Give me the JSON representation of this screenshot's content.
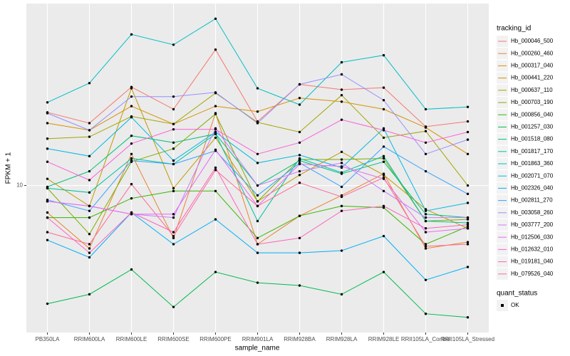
{
  "chart_data": {
    "type": "line",
    "x_label": "sample_name",
    "y_label": "FPKM + 1",
    "y_scale": "log",
    "ylim": [
      3.4,
      38
    ],
    "yticks": [
      10
    ],
    "grid": true,
    "legend_title": "tracking_id",
    "point_legend": {
      "title": "quant_status",
      "labels": [
        "OK"
      ]
    },
    "categories": [
      "PB350LA",
      "RRIM600LA",
      "RRIM600LE",
      "RRIM600SE",
      "RRIM600PE",
      "RRIM901LA",
      "RRIM928BA",
      "RRIM928LA",
      "RRIM928LE",
      "RRII105LA_Control",
      "RRII105LA_Stressed"
    ],
    "series": [
      {
        "name": "Hb_000046_500",
        "color": "#F8766D",
        "values": [
          17.1,
          15.8,
          20.6,
          17.5,
          27.1,
          16.0,
          21.0,
          20.2,
          20.5,
          15.4,
          16.0
        ]
      },
      {
        "name": "Hb_000260_460",
        "color": "#EA8331",
        "values": [
          8.2,
          6.3,
          12.6,
          6.8,
          17.0,
          6.5,
          8.0,
          9.3,
          10.9,
          6.3,
          6.6
        ]
      },
      {
        "name": "Hb_000317_040",
        "color": "#D89000",
        "values": [
          15.8,
          15.0,
          17.9,
          15.7,
          17.9,
          17.2,
          19.0,
          18.5,
          17.5,
          15.3,
          12.6
        ]
      },
      {
        "name": "Hb_000441_220",
        "color": "#C09B00",
        "values": [
          10.5,
          8.6,
          20.4,
          9.8,
          14.2,
          8.9,
          10.8,
          12.8,
          10.8,
          8.4,
          7.3
        ]
      },
      {
        "name": "Hb_000637_110",
        "color": "#A3A500",
        "values": [
          14.1,
          14.3,
          16.6,
          15.7,
          19.7,
          15.9,
          14.8,
          19.4,
          14.2,
          14.9,
          10.0
        ]
      },
      {
        "name": "Hb_000703_190",
        "color": "#7CAE00",
        "values": [
          9.8,
          7.0,
          11.9,
          13.1,
          16.9,
          8.9,
          12.1,
          12.1,
          12.2,
          7.7,
          7.8
        ]
      },
      {
        "name": "Hb_000856_040",
        "color": "#39B600",
        "values": [
          7.9,
          7.9,
          9.1,
          9.6,
          9.6,
          6.8,
          8.0,
          8.6,
          8.5,
          6.5,
          7.4
        ]
      },
      {
        "name": "Hb_001257_030",
        "color": "#00BB4E",
        "values": [
          4.2,
          4.5,
          5.4,
          4.1,
          5.3,
          4.9,
          4.8,
          4.5,
          5.3,
          3.9,
          3.8
        ]
      },
      {
        "name": "Hb_001518_080",
        "color": "#00BF7D",
        "values": [
          9.9,
          11.1,
          14.4,
          13.7,
          14.6,
          10.0,
          12.0,
          10.9,
          11.9,
          8.1,
          7.9
        ]
      },
      {
        "name": "Hb_001817_170",
        "color": "#00C1A3",
        "values": [
          9.8,
          9.5,
          12.2,
          11.7,
          14.6,
          7.7,
          12.2,
          11.0,
          12.4,
          7.7,
          7.6
        ]
      },
      {
        "name": "Hb_001863_360",
        "color": "#00BFC4",
        "values": [
          18.4,
          21.2,
          30.3,
          28.1,
          34.0,
          20.4,
          18.1,
          24.7,
          26.0,
          17.5,
          17.8
        ]
      },
      {
        "name": "Hb_002071_070",
        "color": "#00BAE0",
        "values": [
          13.1,
          12.4,
          16.5,
          12.0,
          14.8,
          11.8,
          12.5,
          11.4,
          15.2,
          8.3,
          8.8
        ]
      },
      {
        "name": "Hb_002326_040",
        "color": "#00B0F6",
        "values": [
          6.7,
          5.9,
          8.2,
          6.5,
          7.8,
          6.1,
          6.1,
          6.2,
          6.9,
          5.0,
          5.5
        ]
      },
      {
        "name": "Hb_002811_270",
        "color": "#35A2FF",
        "values": [
          9.0,
          8.3,
          12.0,
          11.7,
          12.9,
          9.3,
          11.8,
          9.9,
          13.3,
          11.1,
          9.4
        ]
      },
      {
        "name": "Hb_003058_260",
        "color": "#9590FF",
        "values": [
          17.0,
          15.0,
          19.2,
          19.2,
          19.8,
          15.8,
          21.0,
          22.6,
          18.7,
          12.6,
          14.0
        ]
      },
      {
        "name": "Hb_003777_200",
        "color": "#C77CFF",
        "values": [
          8.9,
          8.6,
          8.1,
          7.9,
          15.2,
          10.0,
          11.1,
          11.8,
          9.6,
          7.9,
          7.9
        ]
      },
      {
        "name": "Hb_012506_030",
        "color": "#E76BF3",
        "values": [
          8.9,
          8.6,
          8.1,
          8.1,
          13.0,
          8.6,
          11.7,
          11.5,
          10.5,
          7.1,
          7.3
        ]
      },
      {
        "name": "Hb_012632_010",
        "color": "#FA62DB",
        "values": [
          11.9,
          10.4,
          13.6,
          15.1,
          15.1,
          12.6,
          13.7,
          16.2,
          15.0,
          13.7,
          14.8
        ]
      },
      {
        "name": "Hb_019181_040",
        "color": "#FF62BC",
        "values": [
          7.9,
          6.1,
          8.2,
          7.1,
          11.4,
          6.5,
          6.8,
          8.3,
          8.6,
          7.3,
          7.5
        ]
      },
      {
        "name": "Hb_079526_040",
        "color": "#FF6A98",
        "values": [
          7.1,
          6.5,
          10.1,
          6.9,
          11.2,
          8.6,
          10.2,
          9.2,
          10.6,
          6.4,
          6.5
        ]
      }
    ]
  }
}
